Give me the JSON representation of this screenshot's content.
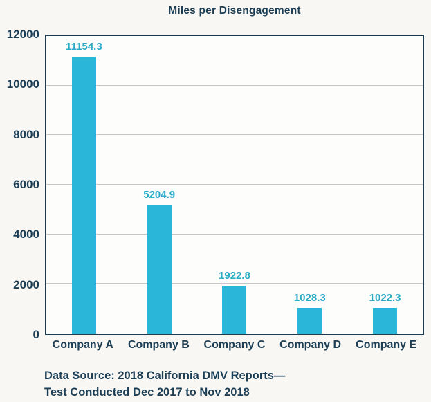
{
  "colors": {
    "navy": "#1C3E55",
    "bar": "#29B6D9",
    "value_label": "#2AABC6",
    "gridline": "#C6C6C6",
    "plot_border": "#1E3B50",
    "page_bg": "#F8F7F4",
    "plot_bg": "#FDFDFB"
  },
  "chart_data": {
    "type": "bar",
    "title": "Miles per Disengagement",
    "categories": [
      "Company A",
      "Company B",
      "Company C",
      "Company D",
      "Company E"
    ],
    "values": [
      11154.3,
      5204.9,
      1922.8,
      1028.3,
      1022.3
    ],
    "value_labels": [
      "11154.3",
      "5204.9",
      "1922.8",
      "1028.3",
      "1022.3"
    ],
    "xlabel": "",
    "ylabel": "",
    "ylim": [
      0,
      12000
    ],
    "ytick_step": 2000,
    "yticks": [
      "0",
      "2000",
      "4000",
      "6000",
      "8000",
      "10000",
      "12000"
    ],
    "grid": "horizontal",
    "legend": "none",
    "source_note_line1": "Data Source: 2018 California DMV Reports—",
    "source_note_line2": "Test Conducted Dec 2017 to Nov 2018"
  }
}
